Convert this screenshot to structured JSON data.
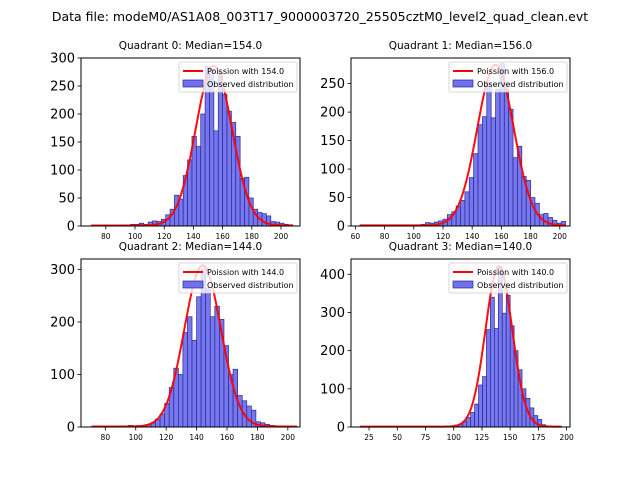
{
  "suptitle": "Data file: modeM0/AS1A08_003T17_9000003720_25505cztM0_level2_quad_clean.evt",
  "colors": {
    "bar_fill": "#7070f0",
    "bar_edge": "#2a2a8a",
    "curve": "#ff0000"
  },
  "chart_data": [
    {
      "type": "bar",
      "title": "Quadrant 0: Median=154.0",
      "legend": [
        "Poission with 154.0",
        "Observed distribution"
      ],
      "legend_position": "top-right",
      "xlim": [
        63,
        213
      ],
      "ylim": [
        0,
        300
      ],
      "xticks": [
        80,
        100,
        120,
        140,
        160,
        180,
        200
      ],
      "yticks": [
        0,
        50,
        100,
        150,
        200,
        250,
        300
      ],
      "bin_width": 3,
      "bin_starts": [
        70,
        73,
        76,
        79,
        82,
        85,
        88,
        91,
        94,
        97,
        100,
        103,
        106,
        109,
        112,
        115,
        118,
        121,
        124,
        127,
        130,
        133,
        136,
        139,
        142,
        145,
        148,
        151,
        154,
        157,
        160,
        163,
        166,
        169,
        172,
        175,
        178,
        181,
        184,
        187,
        190,
        193,
        196,
        199,
        202,
        205
      ],
      "values": [
        1,
        1,
        1,
        1,
        1,
        1,
        1,
        2,
        2,
        3,
        3,
        5,
        3,
        7,
        9,
        8,
        12,
        20,
        30,
        55,
        48,
        90,
        118,
        160,
        142,
        200,
        285,
        280,
        170,
        275,
        235,
        205,
        185,
        160,
        85,
        87,
        50,
        30,
        24,
        22,
        18,
        8,
        7,
        5,
        3,
        2
      ],
      "fit_mean": 154.0,
      "fit_peak": 285
    },
    {
      "type": "bar",
      "title": "Quadrant 1: Median=156.0",
      "legend": [
        "Poission with 156.0",
        "Observed distribution"
      ],
      "legend_position": "top-right",
      "xlim": [
        57,
        207
      ],
      "ylim": [
        0,
        295
      ],
      "xticks": [
        60,
        80,
        100,
        120,
        140,
        160,
        180,
        200
      ],
      "yticks": [
        0,
        50,
        100,
        150,
        200,
        250
      ],
      "bin_width": 3,
      "bin_starts": [
        63,
        66,
        69,
        72,
        75,
        78,
        81,
        84,
        87,
        90,
        93,
        96,
        99,
        102,
        105,
        108,
        111,
        114,
        117,
        120,
        123,
        126,
        129,
        132,
        135,
        138,
        141,
        144,
        147,
        150,
        153,
        156,
        159,
        162,
        165,
        168,
        171,
        174,
        177,
        180,
        183,
        186,
        189,
        192,
        195,
        198,
        201
      ],
      "values": [
        1,
        1,
        1,
        1,
        1,
        1,
        1,
        1,
        1,
        1,
        1,
        1,
        1,
        2,
        3,
        6,
        5,
        7,
        9,
        12,
        20,
        25,
        35,
        45,
        60,
        85,
        127,
        178,
        192,
        250,
        190,
        240,
        285,
        240,
        205,
        120,
        140,
        87,
        80,
        50,
        40,
        20,
        22,
        15,
        10,
        5,
        8
      ],
      "fit_mean": 156.0,
      "fit_peak": 282
    },
    {
      "type": "bar",
      "title": "Quadrant 2: Median=144.0",
      "legend": [
        "Poission with 144.0",
        "Observed distribution"
      ],
      "legend_position": "top-right",
      "xlim": [
        64,
        208
      ],
      "ylim": [
        0,
        320
      ],
      "xticks": [
        80,
        100,
        120,
        140,
        160,
        180,
        200
      ],
      "yticks": [
        0,
        100,
        200,
        300
      ],
      "bin_width": 3,
      "bin_starts": [
        71,
        74,
        77,
        80,
        83,
        86,
        89,
        92,
        95,
        98,
        101,
        104,
        107,
        110,
        113,
        116,
        119,
        122,
        125,
        128,
        131,
        134,
        137,
        140,
        143,
        146,
        149,
        152,
        155,
        158,
        161,
        164,
        167,
        170,
        173,
        176,
        179,
        182,
        185,
        188,
        191,
        194,
        197,
        200,
        203
      ],
      "values": [
        1,
        1,
        1,
        1,
        1,
        1,
        2,
        2,
        3,
        2,
        2,
        3,
        5,
        8,
        15,
        25,
        45,
        75,
        112,
        100,
        180,
        210,
        165,
        248,
        300,
        265,
        210,
        230,
        205,
        155,
        100,
        110,
        60,
        50,
        40,
        32,
        10,
        8,
        5,
        3,
        2,
        2,
        1,
        1,
        1
      ],
      "fit_mean": 144.0,
      "fit_peak": 307
    },
    {
      "type": "bar",
      "title": "Quadrant 3: Median=140.0",
      "legend": [
        "Poission with 140.0",
        "Observed distribution"
      ],
      "legend_position": "top-right",
      "xlim": [
        9,
        203
      ],
      "ylim": [
        0,
        440
      ],
      "xticks": [
        25,
        50,
        75,
        100,
        125,
        150,
        175,
        200
      ],
      "yticks": [
        0,
        100,
        200,
        300,
        400
      ],
      "bin_width": 3.5,
      "bin_starts": [
        17,
        20.5,
        24,
        27.5,
        31,
        34.5,
        38,
        41.5,
        45,
        48.5,
        52,
        55.5,
        59,
        62.5,
        66,
        69.5,
        73,
        76.5,
        80,
        83.5,
        87,
        90.5,
        94,
        97.5,
        101,
        104.5,
        108,
        111.5,
        115,
        118.5,
        122,
        125.5,
        129,
        132.5,
        136,
        139.5,
        143,
        146.5,
        150,
        153.5,
        157,
        160.5,
        164,
        167.5,
        171,
        174.5,
        178,
        181.5,
        185,
        188.5,
        192
      ],
      "values": [
        1,
        1,
        1,
        1,
        1,
        1,
        1,
        1,
        1,
        1,
        1,
        1,
        1,
        1,
        1,
        1,
        1,
        1,
        1,
        1,
        1,
        1,
        2,
        3,
        5,
        8,
        15,
        25,
        38,
        60,
        110,
        132,
        255,
        340,
        258,
        420,
        298,
        345,
        265,
        200,
        150,
        100,
        75,
        50,
        30,
        20,
        6,
        3,
        2,
        1,
        1
      ],
      "fit_mean": 140.0,
      "fit_peak": 420
    }
  ]
}
